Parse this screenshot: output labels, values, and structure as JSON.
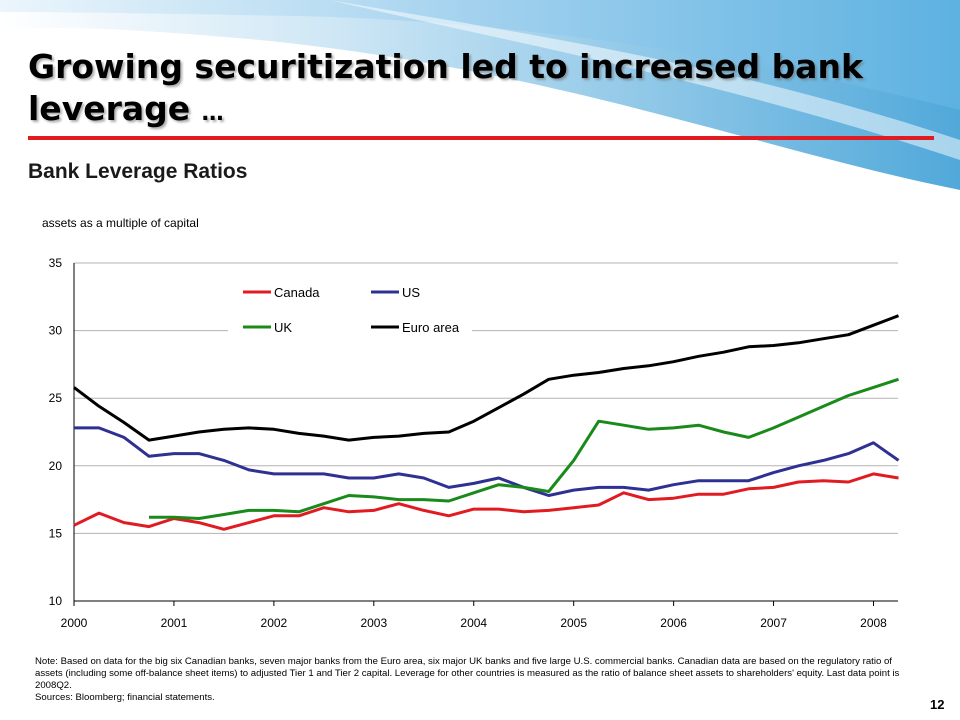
{
  "slide": {
    "title_main": "Growing securitization led to increased bank leverage",
    "title_ellipsis": "…",
    "subtitle": "Bank Leverage Ratios",
    "note": "Note: Based on data for the big six Canadian banks, seven major banks from the Euro area, six major UK banks and five large U.S. commercial banks. Canadian data are based on the regulatory ratio of assets (including some off-balance sheet items) to adjusted Tier 1 and Tier 2 capital.  Leverage for other countries is measured as the ratio of balance sheet assets to shareholders' equity. Last data point is 2008Q2.",
    "sources": "Sources: Bloomberg; financial statements.",
    "page_number": "12",
    "accent_color": "#e11b22"
  },
  "chart_data": {
    "type": "line",
    "ylabel": "assets as a multiple of capital",
    "xlabel": "",
    "ylim": [
      10,
      35
    ],
    "yticks": [
      10,
      15,
      20,
      25,
      30,
      35
    ],
    "xticks": [
      "2000",
      "2001",
      "2002",
      "2003",
      "2004",
      "2005",
      "2006",
      "2007",
      "2008"
    ],
    "x_frequency": "quarterly",
    "grid": true,
    "legend_position": "top-left",
    "x": [
      "2000Q1",
      "2000Q2",
      "2000Q3",
      "2000Q4",
      "2001Q1",
      "2001Q2",
      "2001Q3",
      "2001Q4",
      "2002Q1",
      "2002Q2",
      "2002Q3",
      "2002Q4",
      "2003Q1",
      "2003Q2",
      "2003Q3",
      "2003Q4",
      "2004Q1",
      "2004Q2",
      "2004Q3",
      "2004Q4",
      "2005Q1",
      "2005Q2",
      "2005Q3",
      "2005Q4",
      "2006Q1",
      "2006Q2",
      "2006Q3",
      "2006Q4",
      "2007Q1",
      "2007Q2",
      "2007Q3",
      "2007Q4",
      "2008Q1",
      "2008Q2"
    ],
    "series": [
      {
        "name": "Canada",
        "color": "#e11b22",
        "values": [
          15.6,
          16.5,
          15.8,
          15.5,
          16.1,
          15.8,
          15.3,
          15.8,
          16.3,
          16.3,
          16.9,
          16.6,
          16.7,
          17.2,
          16.7,
          16.3,
          16.8,
          16.8,
          16.6,
          16.7,
          16.9,
          17.1,
          18.0,
          17.5,
          17.6,
          17.9,
          17.9,
          18.3,
          18.4,
          18.8,
          18.9,
          18.8,
          19.4,
          19.1
        ]
      },
      {
        "name": "US",
        "color": "#2e3192",
        "values": [
          22.8,
          22.8,
          22.1,
          20.7,
          20.9,
          20.9,
          20.4,
          19.7,
          19.4,
          19.4,
          19.4,
          19.1,
          19.1,
          19.4,
          19.1,
          18.4,
          18.7,
          19.1,
          18.4,
          17.8,
          18.2,
          18.4,
          18.4,
          18.2,
          18.6,
          18.9,
          18.9,
          18.9,
          19.5,
          20.0,
          20.4,
          20.9,
          21.7,
          20.4
        ]
      },
      {
        "name": "UK",
        "color": "#1a8a1a",
        "values": [
          null,
          null,
          null,
          16.2,
          16.2,
          16.1,
          16.4,
          16.7,
          16.7,
          16.6,
          17.2,
          17.8,
          17.7,
          17.5,
          17.5,
          17.4,
          18.0,
          18.6,
          18.4,
          18.1,
          20.4,
          23.3,
          23.0,
          22.7,
          22.8,
          23.0,
          22.5,
          22.1,
          22.8,
          23.6,
          24.4,
          25.2,
          25.8,
          26.4
        ]
      },
      {
        "name": "Euro area",
        "color": "#000000",
        "values": [
          25.8,
          24.4,
          23.2,
          21.9,
          22.2,
          22.5,
          22.7,
          22.8,
          22.7,
          22.4,
          22.2,
          21.9,
          22.1,
          22.2,
          22.4,
          22.5,
          23.3,
          24.3,
          25.3,
          26.4,
          26.7,
          26.9,
          27.2,
          27.4,
          27.7,
          28.1,
          28.4,
          28.8,
          28.9,
          29.1,
          29.4,
          29.7,
          30.4,
          31.1
        ]
      }
    ]
  }
}
